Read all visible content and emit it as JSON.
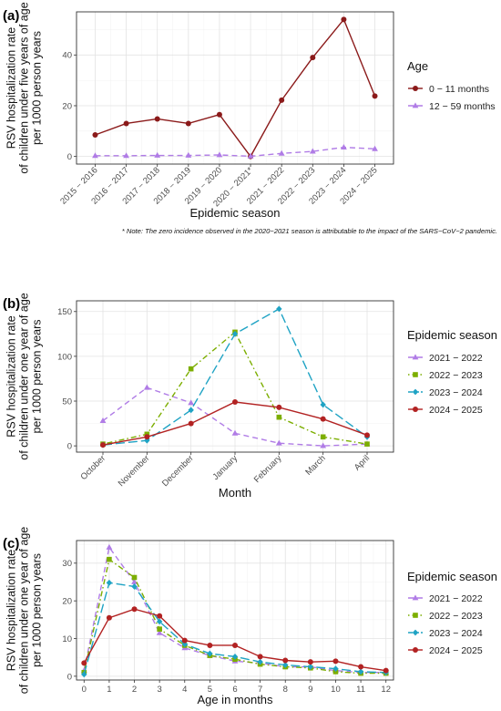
{
  "chart_data": [
    {
      "type": "line",
      "panel_label": "(a)",
      "ylabel": [
        "RSV hospitalization rate",
        "of children under five years of age",
        "per 1000 person years"
      ],
      "xlabel": "Epidemic season",
      "categories": [
        "2015 − 2016",
        "2016 − 2017",
        "2017 − 2018",
        "2018 − 2019",
        "2019 − 2020",
        "2020 − 2021*",
        "2021 − 2022",
        "2022 − 2023",
        "2023 − 2024",
        "2024 − 2025"
      ],
      "ylim": [
        -3,
        57
      ],
      "yticks": [
        0,
        20,
        40
      ],
      "legend_title": "Age",
      "legend_position": "right",
      "grid": true,
      "series": [
        {
          "name": "0 − 11 months",
          "color": "#8b1a1a",
          "marker": "circle",
          "dash": "solid",
          "values": [
            8.5,
            13.0,
            14.8,
            13.0,
            16.5,
            0.0,
            22.2,
            39.0,
            54.0,
            23.8
          ]
        },
        {
          "name": "12 − 59 months",
          "color": "#b07ce6",
          "marker": "triangle",
          "dash": "dashed",
          "values": [
            0.3,
            0.3,
            0.4,
            0.4,
            0.6,
            0.1,
            1.2,
            2.0,
            3.6,
            3.0
          ]
        }
      ],
      "note": "* Note: The zero incidence observed in the 2020−2021 season is attributable to the impact of the SARS−CoV−2 pandemic."
    },
    {
      "type": "line",
      "panel_label": "(b)",
      "ylabel": [
        "RSV hospitalization rate",
        "of children under one year of age",
        "per 1000 person years"
      ],
      "xlabel": "Month",
      "categories": [
        "October",
        "November",
        "December",
        "January",
        "February",
        "March",
        "April"
      ],
      "ylim": [
        -7,
        162
      ],
      "yticks": [
        0,
        50,
        100,
        150
      ],
      "legend_title": "Epidemic season",
      "legend_position": "right",
      "grid": true,
      "series": [
        {
          "name": "2021 − 2022",
          "color": "#b07ce6",
          "marker": "triangle",
          "dash": "dashed",
          "values": [
            28,
            65,
            48,
            14,
            3,
            0,
            2
          ]
        },
        {
          "name": "2022 − 2023",
          "color": "#7cae00",
          "marker": "square",
          "dash": "dotdash",
          "values": [
            2,
            13,
            86,
            127,
            32,
            10,
            2
          ]
        },
        {
          "name": "2023 − 2024",
          "color": "#1fa3c4",
          "marker": "diamond",
          "dash": "longdash",
          "values": [
            1,
            6,
            40,
            125,
            153,
            46,
            10
          ]
        },
        {
          "name": "2024 − 2025",
          "color": "#b22222",
          "marker": "circle",
          "dash": "solid",
          "values": [
            1,
            10,
            25,
            49,
            43,
            30,
            12
          ]
        }
      ]
    },
    {
      "type": "line",
      "panel_label": "(c)",
      "ylabel": [
        "RSV hospitalization rate",
        "of children under one year of age",
        "per 1000 person years"
      ],
      "xlabel": "Age in months",
      "categories": [
        "0",
        "1",
        "2",
        "3",
        "4",
        "5",
        "6",
        "7",
        "8",
        "9",
        "10",
        "11",
        "12"
      ],
      "ylim": [
        -1,
        36
      ],
      "yticks": [
        0,
        10,
        20,
        30
      ],
      "legend_title": "Epidemic season",
      "legend_position": "right",
      "grid": true,
      "series": [
        {
          "name": "2021 − 2022",
          "color": "#b07ce6",
          "marker": "triangle",
          "dash": "dashed",
          "values": [
            1.5,
            34.2,
            25.0,
            11.5,
            7.5,
            5.5,
            4.0,
            3.5,
            2.5,
            2.5,
            1.5,
            1.0,
            1.0
          ]
        },
        {
          "name": "2022 − 2023",
          "color": "#7cae00",
          "marker": "square",
          "dash": "dotdash",
          "values": [
            1.0,
            31.0,
            26.2,
            12.5,
            8.2,
            5.5,
            4.5,
            3.2,
            2.5,
            2.2,
            1.2,
            0.8,
            0.8
          ]
        },
        {
          "name": "2023 − 2024",
          "color": "#1fa3c4",
          "marker": "diamond",
          "dash": "longdash",
          "values": [
            0.5,
            24.8,
            23.8,
            14.5,
            8.5,
            6.0,
            5.2,
            3.8,
            3.0,
            2.5,
            2.0,
            1.2,
            1.0
          ]
        },
        {
          "name": "2024 − 2025",
          "color": "#b22222",
          "marker": "circle",
          "dash": "solid",
          "values": [
            3.5,
            15.5,
            17.8,
            16.0,
            9.5,
            8.2,
            8.2,
            5.2,
            4.2,
            3.8,
            4.0,
            2.5,
            1.5
          ]
        }
      ]
    }
  ]
}
